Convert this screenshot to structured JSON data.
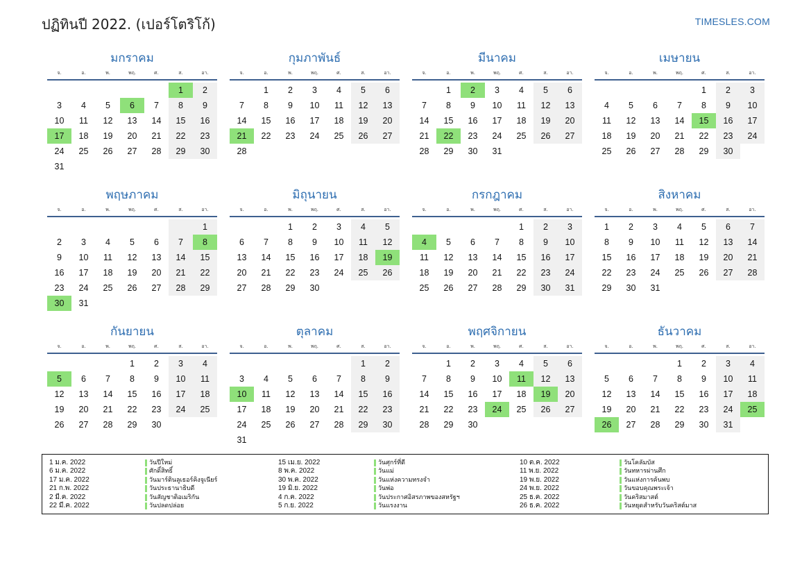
{
  "title": "ปฏิทินปี 2022. (เปอร์โตริโก้)",
  "site": "TIMESLES.COM",
  "colors": {
    "accent": "#2d6db0",
    "holiday": "#8fe07a",
    "weekend": "#f0f0f0"
  },
  "weekday_headers": [
    "จ.",
    "อ.",
    "พ.",
    "พฤ.",
    "ศ.",
    "ส.",
    "อา."
  ],
  "months": [
    {
      "name": "มกราคม",
      "offset": 5,
      "days": 31,
      "holidays": [
        1,
        6,
        17
      ]
    },
    {
      "name": "กุมภาพันธ์",
      "offset": 1,
      "days": 28,
      "holidays": [
        21
      ]
    },
    {
      "name": "มีนาคม",
      "offset": 1,
      "days": 31,
      "holidays": [
        2,
        22
      ]
    },
    {
      "name": "เมษายน",
      "offset": 4,
      "days": 30,
      "holidays": [
        15
      ]
    },
    {
      "name": "พฤษภาคม",
      "offset": 6,
      "days": 31,
      "holidays": [
        8,
        30
      ]
    },
    {
      "name": "มิถุนายน",
      "offset": 2,
      "days": 30,
      "holidays": [
        19
      ]
    },
    {
      "name": "กรกฎาคม",
      "offset": 4,
      "days": 31,
      "holidays": [
        4
      ]
    },
    {
      "name": "สิงหาคม",
      "offset": 0,
      "days": 31,
      "holidays": []
    },
    {
      "name": "กันยายน",
      "offset": 3,
      "days": 30,
      "holidays": [
        5
      ]
    },
    {
      "name": "ตุลาคม",
      "offset": 5,
      "days": 31,
      "holidays": [
        10
      ]
    },
    {
      "name": "พฤศจิกายน",
      "offset": 1,
      "days": 30,
      "holidays": [
        11,
        19,
        24
      ]
    },
    {
      "name": "ธันวาคม",
      "offset": 3,
      "days": 31,
      "holidays": [
        25,
        26
      ]
    }
  ],
  "holidays": {
    "col1_dates": [
      "1 ม.ค. 2022",
      "6 ม.ค. 2022",
      "17 ม.ค. 2022",
      "21 ก.พ. 2022",
      "2 มี.ค. 2022",
      "22 มี.ค. 2022"
    ],
    "col1_names": [
      "วันปีใหม่",
      "ศักดิ์สิทธิ์",
      "วันมาร์ตินลูเธอร์คิงจูเนียร์",
      "วันประธานาธิบดี",
      "วันสัญชาติอเมริกัน",
      "วันปลดปล่อย"
    ],
    "col2_dates": [
      "15 เม.ย. 2022",
      "8 พ.ค. 2022",
      "30 พ.ค. 2022",
      "19 มิ.ย. 2022",
      "4 ก.ค. 2022",
      "5 ก.ย. 2022"
    ],
    "col2_names": [
      "วันศุกร์ที่ดี",
      "วันแม่",
      "วันแห่งความทรงจำ",
      "วันพ่อ",
      "วันประกาศอิสรภาพของสหรัฐฯ",
      "วันแรงงาน"
    ],
    "col3_dates": [
      "10 ต.ค. 2022",
      "11 พ.ย. 2022",
      "19 พ.ย. 2022",
      "24 พ.ย. 2022",
      "25 ธ.ค. 2022",
      "26 ธ.ค. 2022"
    ],
    "col3_names": [
      "วันโคลัมบัส",
      "วันทหารผ่านศึก",
      "วันแห่งการค้นพบ",
      "วันขอบคุณพระเจ้า",
      "วันคริสมาสต์",
      "วันหยุดสำหรับวันคริสต์มาส"
    ]
  }
}
